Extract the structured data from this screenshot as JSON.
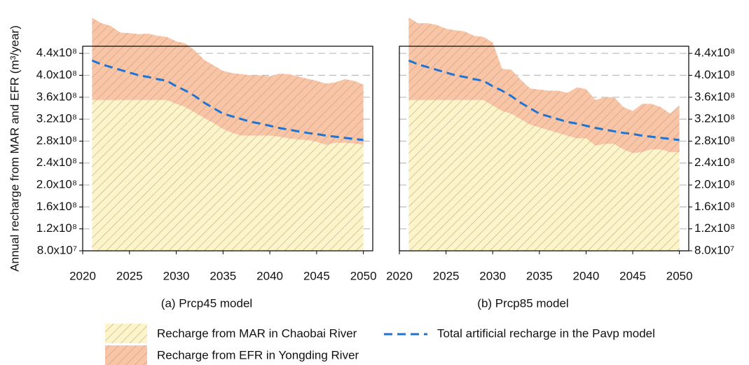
{
  "chart_data": [
    {
      "type": "area",
      "caption": "(a) Prcp45 model",
      "y_label": "Annual recharge from MAR and EFR  (m³/year)",
      "y_axis_side": "left",
      "x": [
        2021,
        2022,
        2023,
        2024,
        2025,
        2026,
        2027,
        2028,
        2029,
        2030,
        2031,
        2032,
        2033,
        2034,
        2035,
        2036,
        2037,
        2038,
        2039,
        2040,
        2041,
        2042,
        2043,
        2044,
        2045,
        2046,
        2047,
        2048,
        2049,
        2050
      ],
      "xlim": [
        2020,
        2051
      ],
      "xticks": [
        2020,
        2025,
        2030,
        2035,
        2040,
        2045,
        2050
      ],
      "ylim": [
        80000000.0,
        453000000.0
      ],
      "yticks": [
        {
          "value": 80000000.0,
          "label": "8.0x10⁷"
        },
        {
          "value": 120000000.0,
          "label": "1.2x10⁸"
        },
        {
          "value": 160000000.0,
          "label": "1.6x10⁸"
        },
        {
          "value": 200000000.0,
          "label": "2.0x10⁸"
        },
        {
          "value": 240000000.0,
          "label": "2.4x10⁸"
        },
        {
          "value": 280000000.0,
          "label": "2.8x10⁸"
        },
        {
          "value": 320000000.0,
          "label": "3.2x10⁸"
        },
        {
          "value": 360000000.0,
          "label": "3.6x10⁸"
        },
        {
          "value": 400000000.0,
          "label": "4.0x10⁸"
        },
        {
          "value": 440000000.0,
          "label": "4.4x10⁸"
        }
      ],
      "grid": true,
      "series": [
        {
          "name": "Recharge from MAR in Chaobai River",
          "kind": "stack",
          "color": "#fdf5c9",
          "hatch": "#b0a890",
          "values": [
            275000000.0,
            275000000.0,
            275000000.0,
            275000000.0,
            275000000.0,
            275000000.0,
            275000000.0,
            275000000.0,
            275000000.0,
            268000000.0,
            262000000.0,
            252000000.0,
            242000000.0,
            233000000.0,
            222000000.0,
            215000000.0,
            210000000.0,
            210000000.0,
            210000000.0,
            210000000.0,
            208000000.0,
            205000000.0,
            203000000.0,
            202000000.0,
            199000000.0,
            193000000.0,
            197000000.0,
            197000000.0,
            196000000.0,
            193000000.0
          ]
        },
        {
          "name": "Recharge from EFR in Yongding River",
          "kind": "stack",
          "color": "#f8c5a6",
          "hatch": "#c99a82",
          "values": [
            150000000.0,
            140000000.0,
            135000000.0,
            123000000.0,
            122000000.0,
            120000000.0,
            121000000.0,
            117000000.0,
            115000000.0,
            114000000.0,
            116000000.0,
            113000000.0,
            106000000.0,
            105000000.0,
            106000000.0,
            109000000.0,
            112000000.0,
            110000000.0,
            110000000.0,
            108000000.0,
            115000000.0,
            117000000.0,
            115000000.0,
            112000000.0,
            111000000.0,
            112000000.0,
            110000000.0,
            116000000.0,
            114000000.0,
            110000000.0
          ]
        },
        {
          "name": "Total artificial recharge  in the Pavp model",
          "kind": "line",
          "color": "#1f74d1",
          "values": [
            427000000.0,
            420000000.0,
            415000000.0,
            410000000.0,
            405000000.0,
            400000000.0,
            397000000.0,
            393000000.0,
            390000000.0,
            380000000.0,
            372000000.0,
            362000000.0,
            350000000.0,
            340000000.0,
            330000000.0,
            325000000.0,
            320000000.0,
            315000000.0,
            312000000.0,
            308000000.0,
            304000000.0,
            301000000.0,
            298000000.0,
            295000000.0,
            293000000.0,
            290000000.0,
            288000000.0,
            286000000.0,
            284000000.0,
            282000000.0
          ]
        }
      ]
    },
    {
      "type": "area",
      "caption": "(b) Prcp85 model",
      "y_axis_side": "right",
      "x": [
        2021,
        2022,
        2023,
        2024,
        2025,
        2026,
        2027,
        2028,
        2029,
        2030,
        2031,
        2032,
        2033,
        2034,
        2035,
        2036,
        2037,
        2038,
        2039,
        2040,
        2041,
        2042,
        2043,
        2044,
        2045,
        2046,
        2047,
        2048,
        2049,
        2050
      ],
      "xlim": [
        2020,
        2051
      ],
      "xticks": [
        2020,
        2025,
        2030,
        2035,
        2040,
        2045,
        2050
      ],
      "ylim": [
        80000000.0,
        453000000.0
      ],
      "yticks": [
        {
          "value": 80000000.0,
          "label": "8.0x10⁷"
        },
        {
          "value": 120000000.0,
          "label": "1.2x10⁸"
        },
        {
          "value": 160000000.0,
          "label": "1.6x10⁸"
        },
        {
          "value": 200000000.0,
          "label": "2.0x10⁸"
        },
        {
          "value": 240000000.0,
          "label": "2.4x10⁸"
        },
        {
          "value": 280000000.0,
          "label": "2.8x10⁸"
        },
        {
          "value": 320000000.0,
          "label": "3.2x10⁸"
        },
        {
          "value": 360000000.0,
          "label": "3.6x10⁸"
        },
        {
          "value": 400000000.0,
          "label": "4.0x10⁸"
        },
        {
          "value": 440000000.0,
          "label": "4.4x10⁸"
        }
      ],
      "grid": true,
      "series": [
        {
          "name": "Recharge from MAR in Chaobai River",
          "kind": "stack",
          "color": "#fdf5c9",
          "hatch": "#b0a890",
          "values": [
            275000000.0,
            275000000.0,
            275000000.0,
            275000000.0,
            275000000.0,
            275000000.0,
            275000000.0,
            275000000.0,
            275000000.0,
            265000000.0,
            255000000.0,
            250000000.0,
            240000000.0,
            230000000.0,
            225000000.0,
            220000000.0,
            215000000.0,
            210000000.0,
            205000000.0,
            205000000.0,
            192000000.0,
            195000000.0,
            195000000.0,
            185000000.0,
            178000000.0,
            180000000.0,
            185000000.0,
            185000000.0,
            180000000.0,
            180000000.0
          ]
        },
        {
          "name": "Recharge from EFR in Yongding River",
          "kind": "stack",
          "color": "#f8c5a6",
          "hatch": "#c99a82",
          "values": [
            150000000.0,
            140000000.0,
            140000000.0,
            137000000.0,
            130000000.0,
            127000000.0,
            125000000.0,
            117000000.0,
            115000000.0,
            115000000.0,
            77000000.0,
            80000000.0,
            72000000.0,
            66000000.0,
            69000000.0,
            72000000.0,
            77000000.0,
            78000000.0,
            93000000.0,
            90000000.0,
            83000000.0,
            85000000.0,
            85000000.0,
            77000000.0,
            77000000.0,
            88000000.0,
            83000000.0,
            77000000.0,
            70000000.0,
            85000000.0
          ]
        },
        {
          "name": "Total artificial recharge  in the Pavp model",
          "kind": "line",
          "color": "#1f74d1",
          "values": [
            427000000.0,
            420000000.0,
            415000000.0,
            410000000.0,
            405000000.0,
            400000000.0,
            397000000.0,
            393000000.0,
            390000000.0,
            380000000.0,
            372000000.0,
            362000000.0,
            350000000.0,
            340000000.0,
            330000000.0,
            325000000.0,
            320000000.0,
            315000000.0,
            312000000.0,
            308000000.0,
            304000000.0,
            301000000.0,
            298000000.0,
            295000000.0,
            293000000.0,
            290000000.0,
            288000000.0,
            286000000.0,
            284000000.0,
            282000000.0
          ]
        }
      ]
    }
  ]
}
